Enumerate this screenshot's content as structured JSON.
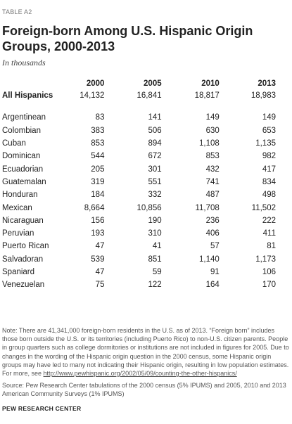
{
  "table_label": "TABLE A2",
  "title": "Foreign-born Among U.S. Hispanic Origin Groups, 2000-2013",
  "subtitle": "In thousands",
  "columns": [
    "2000",
    "2005",
    "2010",
    "2013"
  ],
  "all_hispanics": {
    "label": "All Hispanics",
    "values": [
      "14,132",
      "16,841",
      "18,817",
      "18,983"
    ]
  },
  "rows": [
    {
      "label": "Argentinean",
      "values": [
        "83",
        "141",
        "149",
        "149"
      ]
    },
    {
      "label": "Colombian",
      "values": [
        "383",
        "506",
        "630",
        "653"
      ]
    },
    {
      "label": "Cuban",
      "values": [
        "853",
        "894",
        "1,108",
        "1,135"
      ]
    },
    {
      "label": "Dominican",
      "values": [
        "544",
        "672",
        "853",
        "982"
      ]
    },
    {
      "label": "Ecuadorian",
      "values": [
        "205",
        "301",
        "432",
        "417"
      ]
    },
    {
      "label": "Guatemalan",
      "values": [
        "319",
        "551",
        "741",
        "834"
      ]
    },
    {
      "label": "Honduran",
      "values": [
        "184",
        "332",
        "487",
        "498"
      ]
    },
    {
      "label": "Mexican",
      "values": [
        "8,664",
        "10,856",
        "11,708",
        "11,502"
      ]
    },
    {
      "label": "Nicaraguan",
      "values": [
        "156",
        "190",
        "236",
        "222"
      ]
    },
    {
      "label": "Peruvian",
      "values": [
        "193",
        "310",
        "406",
        "411"
      ]
    },
    {
      "label": "Puerto Rican",
      "values": [
        "47",
        "41",
        "57",
        "81"
      ]
    },
    {
      "label": "Salvadoran",
      "values": [
        "539",
        "851",
        "1,140",
        "1,173"
      ]
    },
    {
      "label": "Spaniard",
      "values": [
        "47",
        "59",
        "91",
        "106"
      ]
    },
    {
      "label": "Venezuelan",
      "values": [
        "75",
        "122",
        "164",
        "170"
      ]
    }
  ],
  "note": "Note: There are 41,341,000 foreign-born residents in the U.S. as of 2013. “Foreign born” includes those born outside the U.S. or its territories (including Puerto Rico) to non-U.S. citizen parents. People in group quarters such as college dormitories or institutions are not included in figures for 2005. Due to changes in the wording of the Hispanic origin question in the 2000 census, some Hispanic origin groups may have led to many not indicating their Hispanic origin, resulting in low population estimates. For more, see",
  "note_link": "http://www.pewhispanic.org/2002/05/09/counting-the-other-hispanics/",
  "source": "Source: Pew Research Center tabulations of the 2000 census (5% IPUMS) and 2005, 2010 and 2013 American Community Surveys (1% IPUMS)",
  "footer": "PEW RESEARCH CENTER"
}
